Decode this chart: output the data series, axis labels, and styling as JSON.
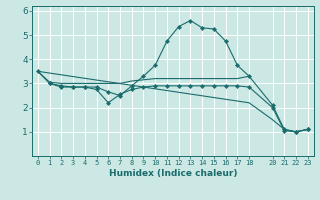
{
  "xlabel": "Humidex (Indice chaleur)",
  "bg_color": "#cce8e5",
  "line_color": "#1a6b6b",
  "grid_color": "#ffffff",
  "xlim": [
    -0.5,
    23.5
  ],
  "ylim": [
    0,
    6.2
  ],
  "xticks": [
    0,
    1,
    2,
    3,
    4,
    5,
    6,
    7,
    8,
    9,
    10,
    11,
    12,
    13,
    14,
    15,
    16,
    17,
    18,
    20,
    21,
    22,
    23
  ],
  "yticks": [
    1,
    2,
    3,
    4,
    5,
    6
  ],
  "series": [
    {
      "x": [
        0,
        1,
        2,
        3,
        4,
        5,
        6,
        7,
        8,
        9,
        10,
        11,
        12,
        13,
        14,
        15,
        16,
        17,
        18,
        20,
        21,
        22,
        23
      ],
      "y": [
        3.5,
        3.0,
        2.9,
        2.85,
        2.85,
        2.85,
        2.65,
        2.5,
        2.9,
        3.3,
        3.75,
        4.75,
        5.35,
        5.6,
        5.3,
        5.25,
        4.75,
        3.75,
        3.3,
        2.1,
        1.1,
        1.0,
        1.1
      ],
      "has_markers": true
    },
    {
      "x": [
        0,
        1,
        2,
        3,
        4,
        5,
        6,
        7,
        8,
        9,
        10,
        11,
        12,
        13,
        14,
        15,
        16,
        17,
        18
      ],
      "y": [
        3.5,
        3.05,
        3.0,
        3.0,
        3.0,
        3.0,
        3.0,
        3.0,
        3.1,
        3.15,
        3.2,
        3.2,
        3.2,
        3.2,
        3.2,
        3.2,
        3.2,
        3.2,
        3.3
      ],
      "has_markers": false
    },
    {
      "x": [
        0,
        18,
        20,
        21,
        22,
        23
      ],
      "y": [
        3.5,
        2.2,
        1.5,
        1.1,
        1.0,
        1.1
      ],
      "has_markers": false
    },
    {
      "x": [
        1,
        2,
        3,
        4,
        5,
        6,
        7,
        8,
        9,
        10,
        11,
        12,
        13,
        14,
        15,
        16,
        17,
        18,
        20,
        21,
        22,
        23
      ],
      "y": [
        3.0,
        2.85,
        2.85,
        2.85,
        2.75,
        2.2,
        2.55,
        2.75,
        2.85,
        2.9,
        2.9,
        2.9,
        2.9,
        2.9,
        2.9,
        2.9,
        2.9,
        2.85,
        2.0,
        1.05,
        1.0,
        1.1
      ],
      "has_markers": true
    }
  ]
}
